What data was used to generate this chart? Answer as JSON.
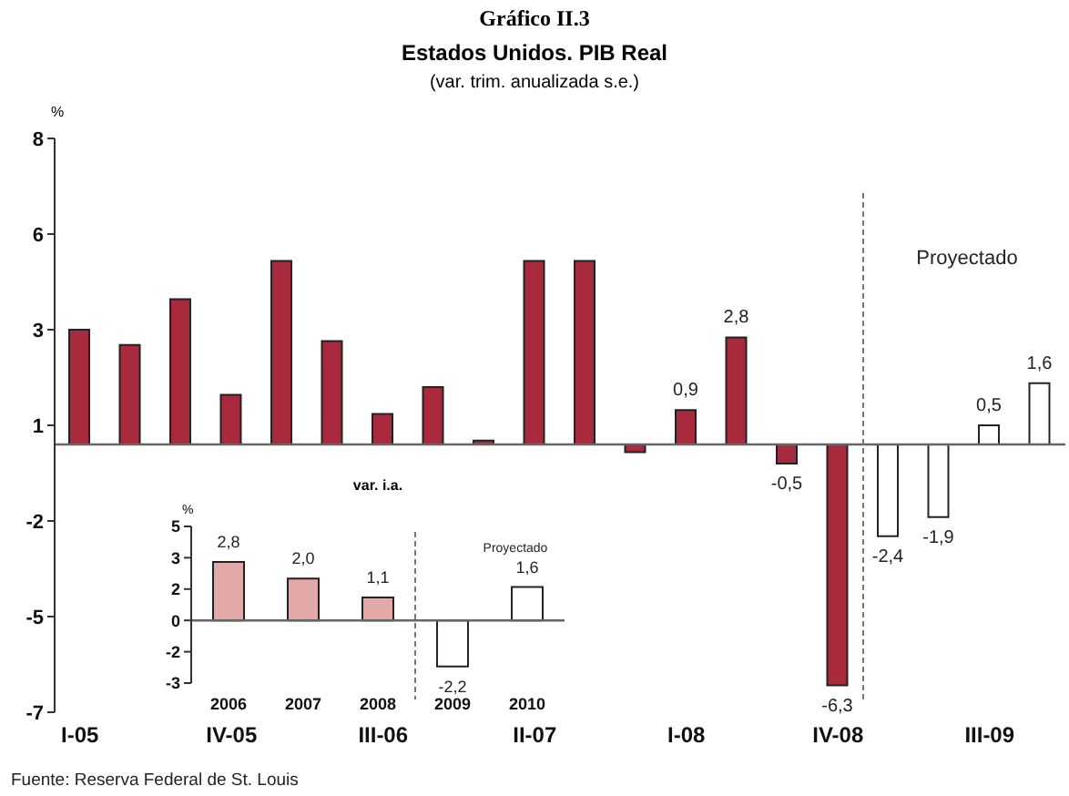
{
  "chart_data": [
    {
      "type": "bar",
      "title": "Gráfico II.3",
      "subtitle": "Estados Unidos. PIB Real",
      "annotations": [
        "(var. trim. anualizada s.e.)",
        "Fuente: Reserva Federal de St. Louis",
        "Proyectado"
      ],
      "ylabel": "%",
      "categories": [
        "I-05",
        null,
        null,
        "IV-05",
        null,
        null,
        "III-06",
        null,
        null,
        "II-07",
        null,
        null,
        "I-08",
        null,
        null,
        "IV-08",
        null,
        null,
        "III-09",
        null
      ],
      "values": [
        3.0,
        2.6,
        3.8,
        1.3,
        4.8,
        2.7,
        0.8,
        1.5,
        0.1,
        4.8,
        4.8,
        -0.2,
        0.9,
        2.8,
        -0.5,
        -6.3,
        -2.4,
        -1.9,
        0.5,
        1.6
      ],
      "colors": [
        "#a82a3c",
        "#a82a3c",
        "#a82a3c",
        "#a82a3c",
        "#a82a3c",
        "#a82a3c",
        "#a82a3c",
        "#a82a3c",
        "#a82a3c",
        "#a82a3c",
        "#a82a3c",
        "#a82a3c",
        "#a82a3c",
        "#a82a3c",
        "#a82a3c",
        "#a82a3c",
        "#ffffff",
        "#ffffff",
        "#ffffff",
        "#ffffff"
      ],
      "value_labels": [
        null,
        null,
        null,
        null,
        null,
        null,
        null,
        null,
        null,
        null,
        null,
        null,
        "0,9",
        "2,8",
        "-0,5",
        "-6,3",
        "-2,4",
        "-1,9",
        "0,5",
        "1,6"
      ],
      "ylim": [
        -7,
        8
      ],
      "yticks": [
        -7,
        {
          "value": -4.5,
          "label": "-5"
        },
        -2,
        {
          "value": 0.5,
          "label": "1"
        },
        3,
        {
          "value": 5.5,
          "label": "6"
        },
        8
      ]
    },
    {
      "type": "bar",
      "title": "var. i.a.",
      "ylabel": "%",
      "categories": [
        "2006",
        "2007",
        "2008",
        "2009",
        "2010"
      ],
      "values": [
        2.8,
        2.0,
        1.1,
        -2.2,
        1.6
      ],
      "colors": [
        "#e3a9a9",
        "#e3a9a9",
        "#e3a9a9",
        "#ffffff",
        "#ffffff"
      ],
      "value_labels": [
        "2,8",
        "2,0",
        "1,1",
        "-2,2",
        "1,6"
      ],
      "ylim": [
        -3,
        4.5
      ],
      "yticks": [
        -3,
        {
          "value": -1.5,
          "label": "-2"
        },
        0,
        {
          "value": 1.5,
          "label": "2"
        },
        3,
        {
          "value": 4.5,
          "label": "5"
        }
      ],
      "annotations": [
        "Proyectado"
      ]
    }
  ]
}
